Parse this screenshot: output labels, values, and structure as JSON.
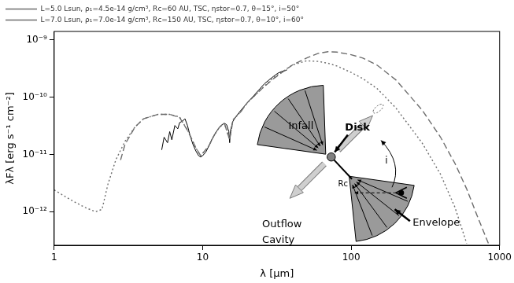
{
  "chart_data": {
    "type": "line",
    "x_label": "λ [μm]",
    "y_label": "λFλ [erg s⁻¹ cm⁻²]",
    "log": true,
    "grid": false,
    "legend": "top-left",
    "xlim": [
      1,
      1000
    ],
    "xticks": [
      1,
      10,
      100,
      1000
    ],
    "ylim": [
      2.6e-13,
      1.4e-09
    ],
    "yticks": [
      {
        "value": 1e-12,
        "label": "10⁻¹²"
      },
      {
        "value": 1e-11,
        "label": "10⁻¹¹"
      },
      {
        "value": 1e-10,
        "label": "10⁻¹⁰"
      },
      {
        "value": 1e-09,
        "label": "10⁻⁹"
      }
    ],
    "series": [
      {
        "name": "L=5.0 Lsun, ρ₁=4.5e-14 g/cm³, Rc=60 AU, TSC, ηstor=0.7, θ=15°, i=50°",
        "color": "#6e6e6e",
        "line_style": "dotted",
        "marker": "none",
        "x": [
          1,
          1.3,
          1.6,
          1.9,
          2.1,
          2.3,
          2.6,
          3,
          3.5,
          4,
          5,
          6,
          7,
          8,
          9,
          9.7,
          11,
          12,
          13,
          14,
          15.2,
          16,
          18,
          20,
          25,
          30,
          40,
          50,
          60,
          70,
          80,
          100,
          120,
          150,
          200,
          300,
          400,
          500,
          600
        ],
        "values": [
          2.4e-12,
          1.6e-12,
          1.2e-12,
          1e-12,
          1.1e-12,
          3e-12,
          8e-12,
          1.7e-11,
          3e-11,
          4.2e-11,
          5e-11,
          5e-11,
          4.5e-11,
          2.5e-11,
          1.3e-11,
          9.5e-12,
          1.4e-11,
          2.2e-11,
          3e-11,
          3.5e-11,
          1.8e-11,
          4e-11,
          5.5e-11,
          8e-11,
          1.4e-10,
          2.2e-10,
          3.6e-10,
          4.3e-10,
          4.2e-10,
          3.9e-10,
          3.5e-10,
          2.7e-10,
          2.1e-10,
          1.4e-10,
          6.5e-11,
          1.6e-11,
          4.5e-12,
          1.2e-12,
          2.8e-13
        ]
      },
      {
        "name": "L=7.0 Lsun, ρ₁=7.0e-14 g/cm³, Rc=150 AU, TSC, ηstor=0.7, θ=10°, i=60°",
        "color": "#6e6e6e",
        "line_style": "dashed",
        "marker": "none",
        "x": [
          2.8,
          3,
          3.5,
          4,
          5,
          6,
          7,
          8,
          9,
          9.7,
          11,
          12,
          13,
          14,
          15.2,
          16,
          18,
          20,
          25,
          30,
          40,
          50,
          60,
          70,
          80,
          100,
          120,
          150,
          200,
          300,
          400,
          500,
          600,
          700,
          850
        ],
        "values": [
          8e-12,
          1.5e-11,
          3e-11,
          4.2e-11,
          5e-11,
          5e-11,
          4.4e-11,
          2.5e-11,
          1.3e-11,
          9.5e-12,
          1.4e-11,
          2.2e-11,
          3e-11,
          3.5e-11,
          1.8e-11,
          4e-11,
          5.5e-11,
          8e-11,
          1.4e-10,
          2.1e-10,
          3.6e-10,
          4.8e-10,
          5.8e-10,
          6.2e-10,
          6.1e-10,
          5.5e-10,
          4.8e-10,
          3.6e-10,
          2e-10,
          6e-11,
          2e-11,
          7e-12,
          2.5e-12,
          9e-13,
          2.6e-13
        ]
      },
      {
        "color": "#000000",
        "line_style": "solid",
        "marker": "none",
        "x": [
          5.3,
          5.5,
          5.8,
          6.0,
          6.2,
          6.5,
          6.8,
          7.0,
          7.3,
          7.6,
          7.9,
          8.2,
          8.6,
          9.0,
          9.4,
          9.7,
          10.0,
          10.5,
          11.0,
          11.5,
          12,
          12.5,
          13,
          13.5,
          14,
          14.5,
          15.0,
          15.2,
          15.4,
          16,
          17,
          18,
          20,
          22,
          24,
          26,
          28,
          30,
          32,
          34,
          36,
          37
        ],
        "values": [
          1.2e-11,
          2e-11,
          1.6e-11,
          2.5e-11,
          1.8e-11,
          3.2e-11,
          2.8e-11,
          3.6e-11,
          3.8e-11,
          4.2e-11,
          3.2e-11,
          2.2e-11,
          1.5e-11,
          1.15e-11,
          9.5e-12,
          9e-12,
          9.5e-12,
          1.1e-11,
          1.4e-11,
          1.8e-11,
          2.2e-11,
          2.6e-11,
          3e-11,
          3.3e-11,
          3.5e-11,
          3.3e-11,
          2.5e-11,
          1.6e-11,
          2.6e-11,
          3.8e-11,
          4.8e-11,
          5.8e-11,
          8e-11,
          1.05e-10,
          1.35e-10,
          1.7e-10,
          2e-10,
          2.3e-10,
          2.6e-10,
          2.8e-10,
          2.9e-10,
          3e-10
        ]
      }
    ],
    "annotations": [
      "Infall",
      "Disk",
      "Outflow Cavity",
      "Envelope",
      "Rc",
      "i"
    ]
  }
}
